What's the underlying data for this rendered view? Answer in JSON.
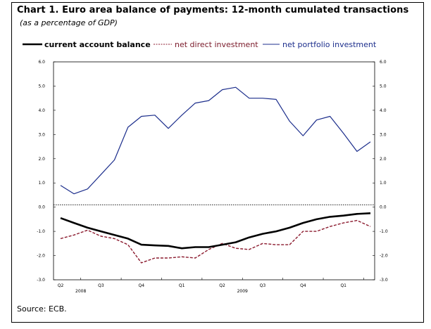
{
  "chart_data": {
    "type": "line",
    "title": "Chart 1. Euro area balance of payments: 12-month cumulated transactions",
    "subtitle": "(as a percentage of GDP)",
    "source": "Source: ECB.",
    "legend_position": "top",
    "ylim": [
      -3.0,
      6.0
    ],
    "y_ticks_left": [
      "6.0",
      "5.0",
      "4.0",
      "3.0",
      "2.0",
      "1.0",
      "0.0",
      "-1.0",
      "-2.0",
      "-3.0"
    ],
    "y_ticks_right": [
      "6.0",
      "5.0",
      "4.0",
      "3.0",
      "2.0",
      "1.0",
      "0.0",
      "-1.0",
      "-2.0",
      "-3.0"
    ],
    "quarter_labels": [
      "Q2",
      "Q3",
      "Q4",
      "Q1",
      "Q2",
      "Q3",
      "Q4",
      "Q1"
    ],
    "year_labels": [
      "2008",
      "2009"
    ],
    "x": [
      "2008-04",
      "2008-05",
      "2008-06",
      "2008-07",
      "2008-08",
      "2008-09",
      "2008-10",
      "2008-11",
      "2008-12",
      "2009-01",
      "2009-02",
      "2009-03",
      "2009-04",
      "2009-05",
      "2009-06",
      "2009-07",
      "2009-08",
      "2009-09",
      "2009-10",
      "2009-11",
      "2009-12",
      "2010-01",
      "2010-02",
      "2010-03"
    ],
    "series": [
      {
        "name": "current account balance",
        "color": "#000000",
        "style": "solid-thick",
        "values": [
          -0.45,
          -0.65,
          -0.85,
          -1.0,
          -1.15,
          -1.3,
          -1.55,
          -1.58,
          -1.6,
          -1.7,
          -1.65,
          -1.65,
          -1.55,
          -1.45,
          -1.25,
          -1.1,
          -1.0,
          -0.85,
          -0.65,
          -0.5,
          -0.4,
          -0.35,
          -0.28,
          -0.25
        ]
      },
      {
        "name": "net direct investment",
        "color": "#8b1a2e",
        "style": "dashed",
        "values": [
          -1.3,
          -1.15,
          -0.95,
          -1.2,
          -1.3,
          -1.55,
          -2.3,
          -2.1,
          -2.1,
          -2.05,
          -2.1,
          -1.75,
          -1.5,
          -1.7,
          -1.75,
          -1.5,
          -1.55,
          -1.55,
          -1.0,
          -1.0,
          -0.8,
          -0.65,
          -0.55,
          -0.8
        ]
      },
      {
        "name": "net portfolio investment",
        "color": "#1c2e8c",
        "style": "solid",
        "values": [
          0.9,
          0.55,
          0.75,
          1.35,
          1.95,
          3.3,
          3.75,
          3.8,
          3.25,
          3.8,
          4.3,
          4.4,
          4.85,
          4.95,
          4.5,
          4.5,
          4.45,
          3.55,
          2.95,
          3.6,
          3.75,
          3.05,
          2.3,
          2.7
        ]
      }
    ]
  }
}
